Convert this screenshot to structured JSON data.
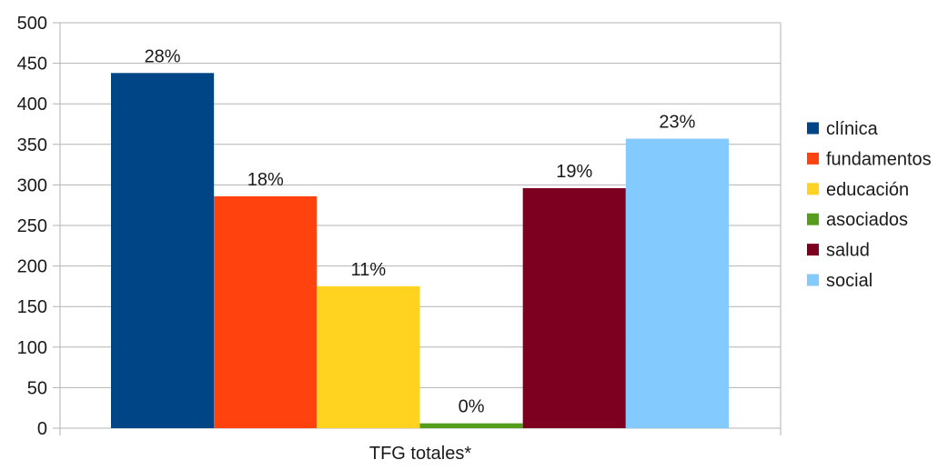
{
  "chart_data": {
    "type": "bar",
    "categories": [
      "TFG totales*"
    ],
    "series": [
      {
        "name": "clínica",
        "values": [
          438
        ],
        "label": "28%",
        "color": "#004586"
      },
      {
        "name": "fundamentos",
        "values": [
          286
        ],
        "label": "18%",
        "color": "#ff420e"
      },
      {
        "name": "educación",
        "values": [
          175
        ],
        "label": "11%",
        "color": "#ffd320"
      },
      {
        "name": "asociados",
        "values": [
          6
        ],
        "label": "0%",
        "color": "#579d1c"
      },
      {
        "name": "salud",
        "values": [
          296
        ],
        "label": "19%",
        "color": "#7e0021"
      },
      {
        "name": "social",
        "values": [
          357
        ],
        "label": "23%",
        "color": "#83caff"
      }
    ],
    "ylim": [
      0,
      500
    ],
    "yticks": [
      0,
      50,
      100,
      150,
      200,
      250,
      300,
      350,
      400,
      450,
      500
    ],
    "grid": true,
    "legend": "right"
  }
}
